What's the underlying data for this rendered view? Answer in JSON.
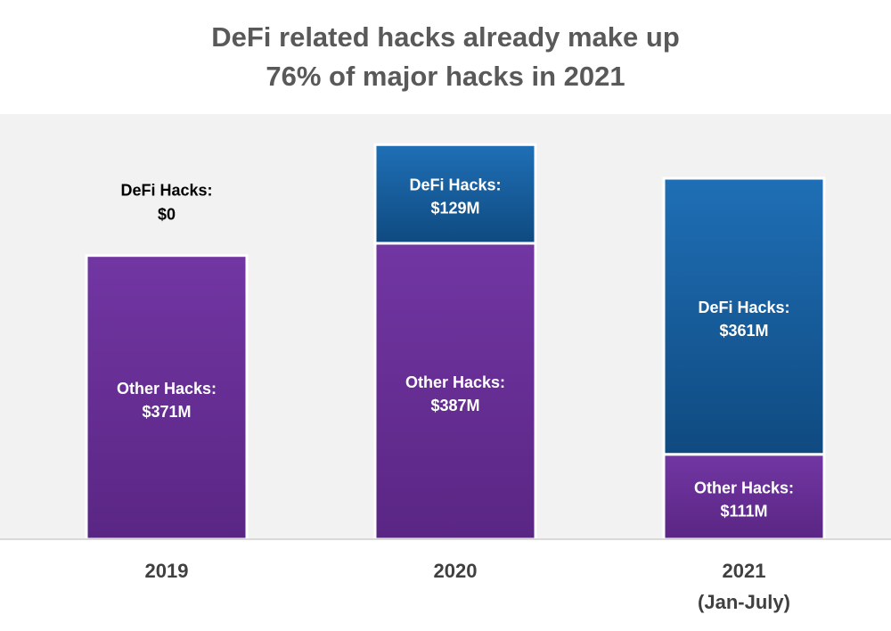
{
  "title_line1": "DeFi related hacks already make up",
  "title_line2": "76% of major hacks in 2021",
  "colors": {
    "plot_background": "#f2f2f2",
    "other_top": "#7236a3",
    "other_bottom": "#5a2684",
    "defi_top": "#1f6fb6",
    "defi_bottom": "#0f4a80"
  },
  "chart_data": {
    "type": "bar",
    "stacked": true,
    "categories": [
      "2019",
      "2020",
      "2021"
    ],
    "category_sublabels": [
      "",
      "",
      "(Jan-July)"
    ],
    "series": [
      {
        "name": "Other Hacks",
        "values": [
          371,
          387,
          111
        ],
        "labels": [
          "$371M",
          "$387M",
          "$111M"
        ]
      },
      {
        "name": "DeFi Hacks",
        "values": [
          0,
          129,
          361
        ],
        "labels": [
          "$0",
          "$129M",
          "$361M"
        ]
      }
    ],
    "unit": "$M",
    "ylim": [
      0,
      530
    ],
    "grid": false,
    "legend": "none"
  }
}
